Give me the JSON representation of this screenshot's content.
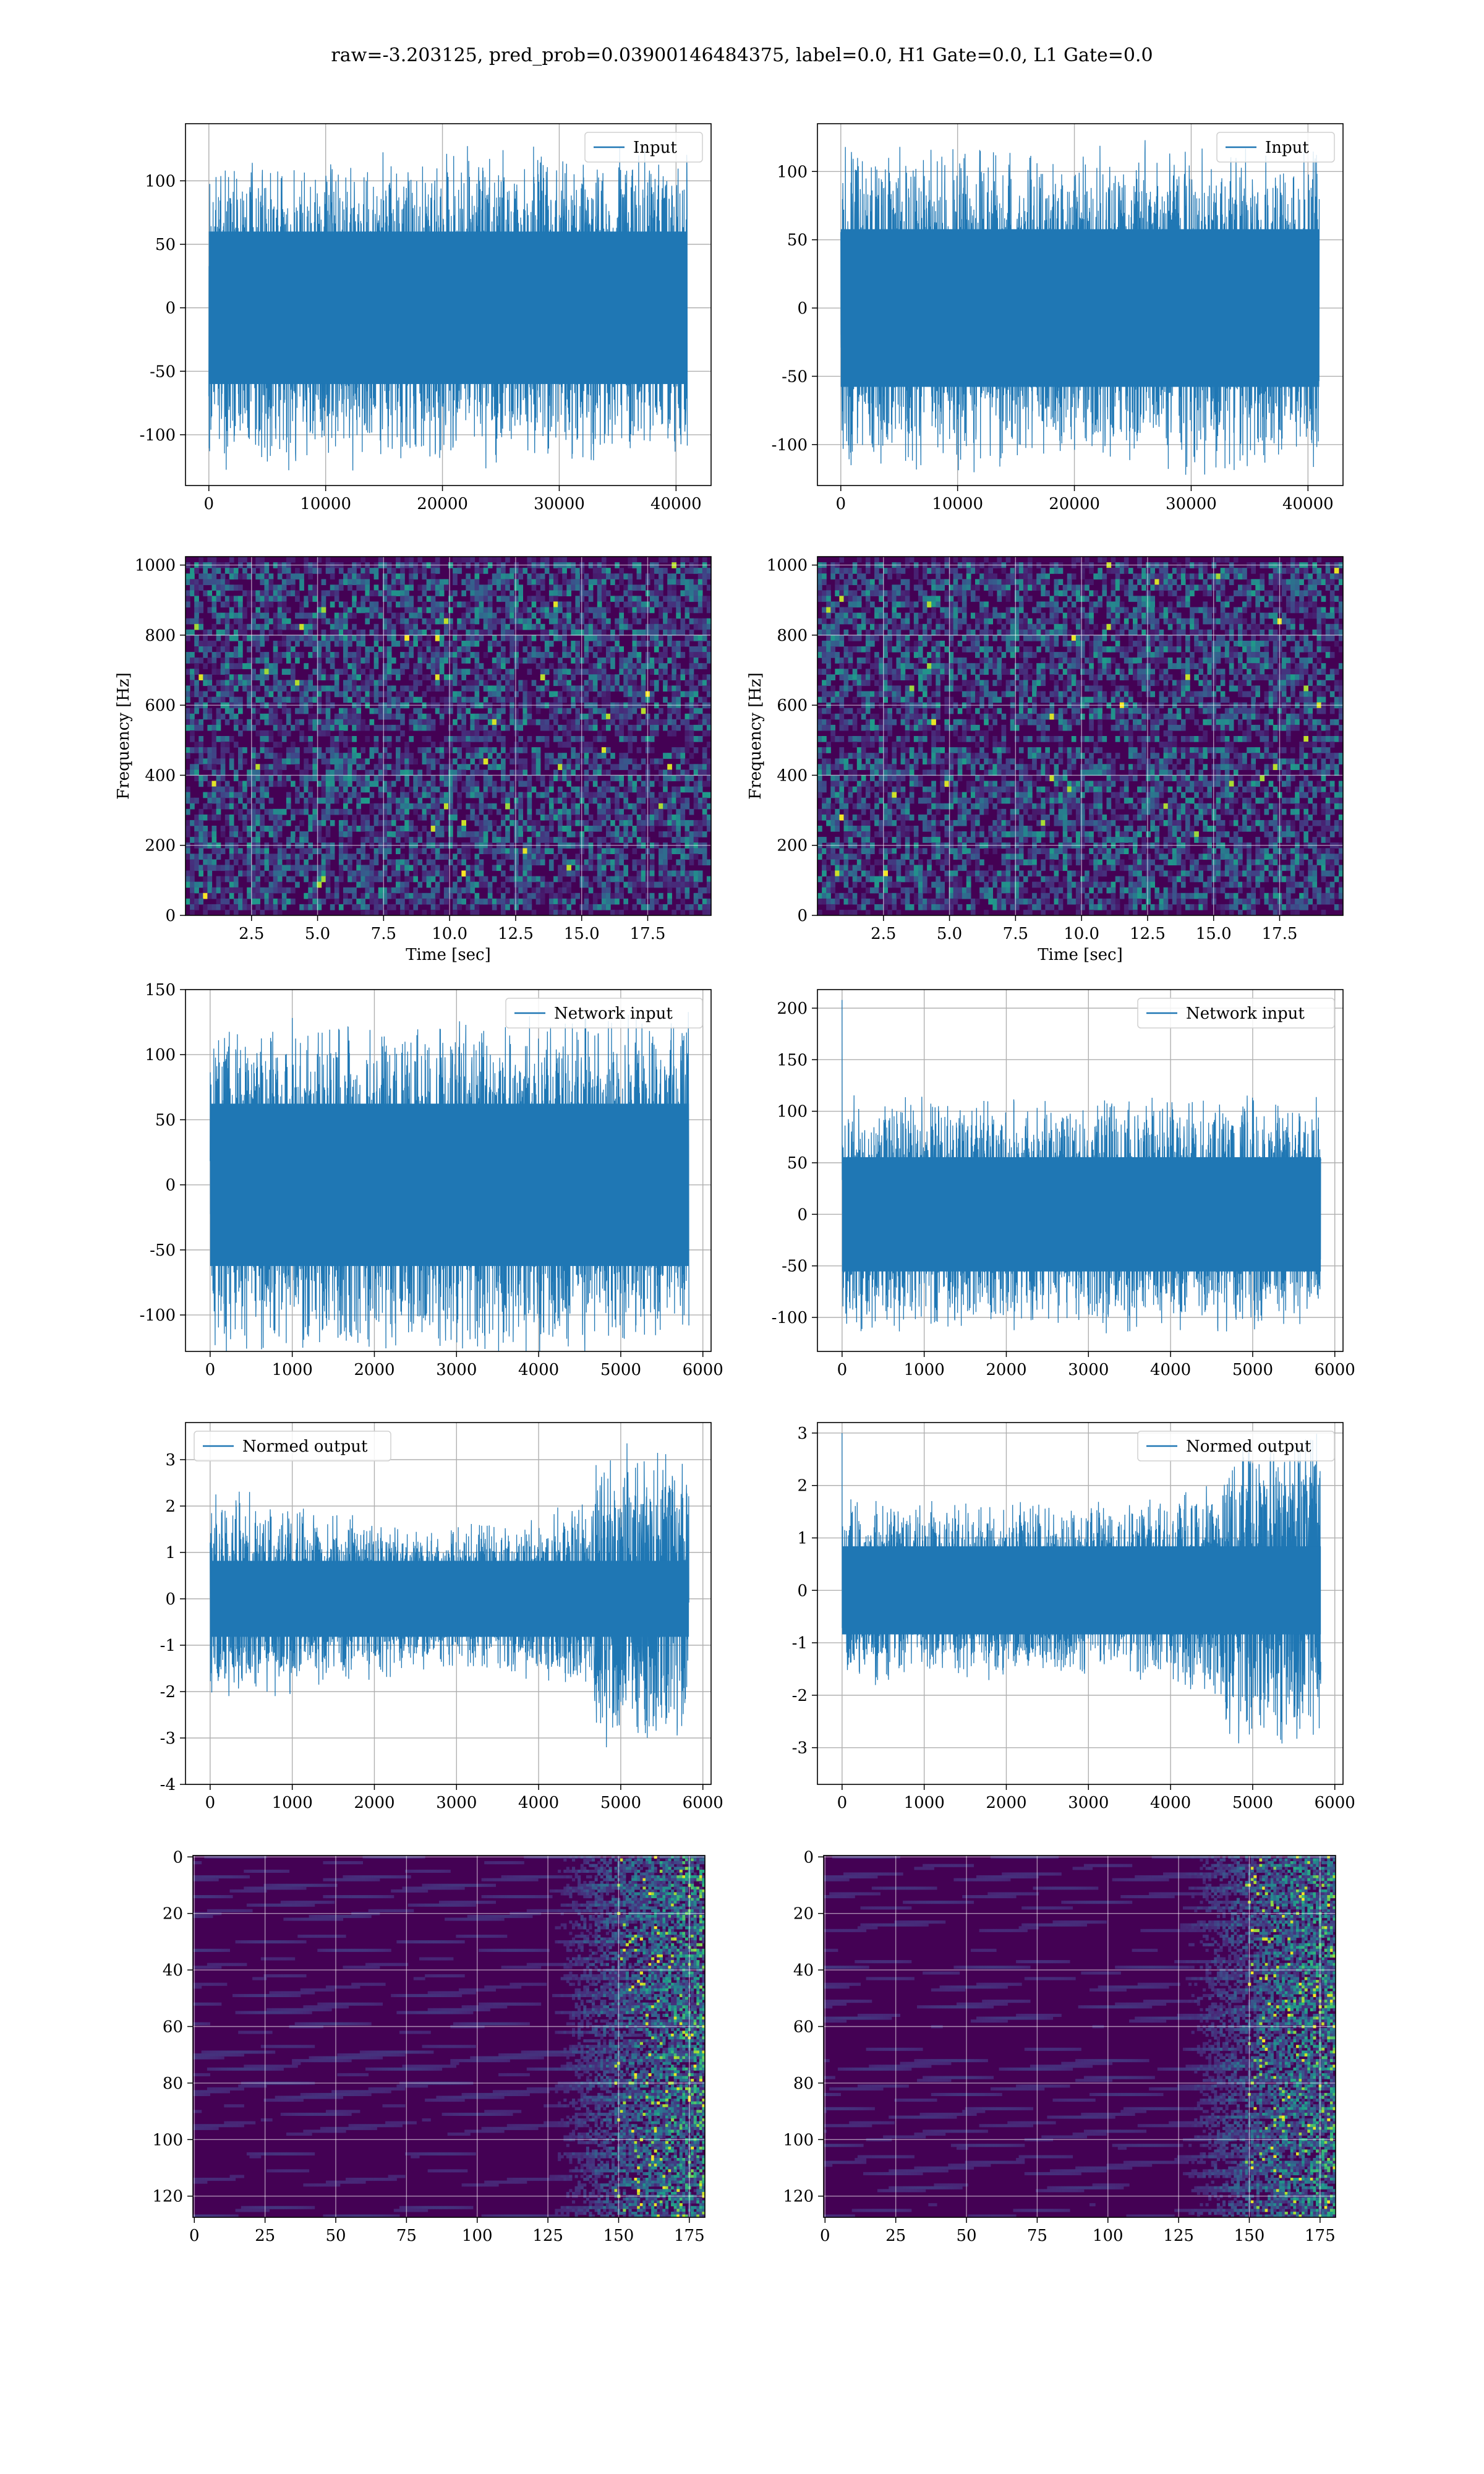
{
  "title": "raw=-3.203125, pred_prob=0.03900146484375, label=0.0, H1 Gate=0.0, L1 Gate=0.0",
  "colors": {
    "line": "#1f77b4",
    "grid": "#b0b0b0",
    "heat_low": "#440154",
    "heat_mid": "#21908d",
    "heat_high": "#fde725"
  },
  "chart_data": [
    {
      "id": "h1-input",
      "type": "line",
      "series": [
        {
          "name": "Input"
        }
      ],
      "legend_loc": "upper right",
      "xlim": [
        -2000,
        43000
      ],
      "ylim": [
        -140,
        145
      ],
      "xticks": [
        0,
        10000,
        20000,
        30000,
        40000
      ],
      "yticks": [
        -100,
        -50,
        0,
        50,
        100
      ],
      "x_range": [
        0,
        40960
      ],
      "amplitude": 130,
      "envelope": [
        1,
        1,
        1,
        1,
        1,
        1,
        1,
        1,
        1,
        1
      ],
      "grid": true,
      "xlabel": "",
      "ylabel": ""
    },
    {
      "id": "l1-input",
      "type": "line",
      "series": [
        {
          "name": "Input"
        }
      ],
      "legend_loc": "upper right",
      "xlim": [
        -2000,
        43000
      ],
      "ylim": [
        -130,
        135
      ],
      "xticks": [
        0,
        10000,
        20000,
        30000,
        40000
      ],
      "yticks": [
        -100,
        -50,
        0,
        50,
        100
      ],
      "x_range": [
        0,
        40960
      ],
      "amplitude": 125,
      "envelope": [
        1,
        1,
        1,
        1,
        1,
        1,
        1,
        1,
        1,
        1
      ],
      "grid": true,
      "xlabel": "",
      "ylabel": ""
    },
    {
      "id": "h1-spectrogram",
      "type": "heatmap",
      "xlim": [
        0,
        19.9
      ],
      "ylim": [
        0,
        1024
      ],
      "xticks": [
        2.5,
        5.0,
        7.5,
        10.0,
        12.5,
        15.0,
        17.5
      ],
      "yticks": [
        0,
        200,
        400,
        600,
        800,
        1000
      ],
      "xlabel": "Time [sec]",
      "ylabel": "Frequency [Hz]",
      "pattern": "speckle",
      "grid": true
    },
    {
      "id": "l1-spectrogram",
      "type": "heatmap",
      "xlim": [
        0,
        19.9
      ],
      "ylim": [
        0,
        1024
      ],
      "xticks": [
        2.5,
        5.0,
        7.5,
        10.0,
        12.5,
        15.0,
        17.5
      ],
      "yticks": [
        0,
        200,
        400,
        600,
        800,
        1000
      ],
      "xlabel": "Time [sec]",
      "ylabel": "Frequency [Hz]",
      "pattern": "speckle",
      "grid": true
    },
    {
      "id": "h1-network-input",
      "type": "line",
      "series": [
        {
          "name": "Network input"
        }
      ],
      "legend_loc": "upper right",
      "xlim": [
        -300,
        6100
      ],
      "ylim": [
        -128,
        150
      ],
      "xticks": [
        0,
        1000,
        2000,
        3000,
        4000,
        5000,
        6000
      ],
      "yticks": [
        -100,
        -50,
        0,
        50,
        100,
        150
      ],
      "x_range": [
        0,
        5830
      ],
      "amplitude": 135,
      "envelope": [
        1,
        1,
        1,
        1,
        1,
        1,
        1,
        1,
        1,
        1
      ],
      "grid": true,
      "xlabel": "",
      "ylabel": ""
    },
    {
      "id": "l1-network-input",
      "type": "line",
      "series": [
        {
          "name": "Network input"
        }
      ],
      "legend_loc": "upper right",
      "xlim": [
        -300,
        6100
      ],
      "ylim": [
        -133,
        218
      ],
      "xticks": [
        0,
        1000,
        2000,
        3000,
        4000,
        5000,
        6000
      ],
      "yticks": [
        -100,
        -50,
        0,
        50,
        100,
        150,
        200
      ],
      "x_range": [
        0,
        5830
      ],
      "amplitude": 120,
      "envelope": [
        1,
        1,
        1,
        1,
        1,
        1,
        1,
        1,
        1,
        1
      ],
      "spike": {
        "x": 0,
        "y": 208
      },
      "grid": true,
      "xlabel": "",
      "ylabel": ""
    },
    {
      "id": "h1-normed-output",
      "type": "line",
      "series": [
        {
          "name": "Normed output"
        }
      ],
      "legend_loc": "upper left",
      "xlim": [
        -300,
        6100
      ],
      "ylim": [
        -4,
        3.8
      ],
      "xticks": [
        0,
        1000,
        2000,
        3000,
        4000,
        5000,
        6000
      ],
      "yticks": [
        -4,
        -3,
        -2,
        -1,
        0,
        1,
        2,
        3
      ],
      "x_range": [
        0,
        5830
      ],
      "amplitude": 2.6,
      "envelope": [
        0.9,
        0.85,
        0.75,
        0.7,
        0.65,
        0.65,
        0.7,
        0.85,
        1.3,
        1.35
      ],
      "grid": true,
      "xlabel": "",
      "ylabel": ""
    },
    {
      "id": "l1-normed-output",
      "type": "line",
      "series": [
        {
          "name": "Normed output"
        }
      ],
      "legend_loc": "upper right",
      "xlim": [
        -300,
        6100
      ],
      "ylim": [
        -3.7,
        3.2
      ],
      "xticks": [
        0,
        1000,
        2000,
        3000,
        4000,
        5000,
        6000
      ],
      "yticks": [
        -3,
        -2,
        -1,
        0,
        1,
        2,
        3
      ],
      "x_range": [
        0,
        5830
      ],
      "amplitude": 2.5,
      "envelope": [
        0.75,
        0.7,
        0.7,
        0.7,
        0.7,
        0.7,
        0.75,
        0.85,
        1.2,
        1.3
      ],
      "spike": {
        "x": 0,
        "y": 3.0
      },
      "grid": true,
      "xlabel": "",
      "ylabel": ""
    },
    {
      "id": "h1-feature-map",
      "type": "heatmap",
      "xlim": [
        -0.5,
        180.5
      ],
      "ylim": [
        127.5,
        -0.5
      ],
      "xticks": [
        0,
        25,
        50,
        75,
        100,
        125,
        150,
        175
      ],
      "yticks": [
        0,
        20,
        40,
        60,
        80,
        100,
        120
      ],
      "xlabel": "",
      "ylabel": "",
      "pattern": "bands",
      "grid": true
    },
    {
      "id": "l1-feature-map",
      "type": "heatmap",
      "xlim": [
        -0.5,
        180.5
      ],
      "ylim": [
        127.5,
        -0.5
      ],
      "xticks": [
        0,
        25,
        50,
        75,
        100,
        125,
        150,
        175
      ],
      "yticks": [
        0,
        20,
        40,
        60,
        80,
        100,
        120
      ],
      "xlabel": "",
      "ylabel": "",
      "pattern": "bands",
      "grid": true
    }
  ]
}
